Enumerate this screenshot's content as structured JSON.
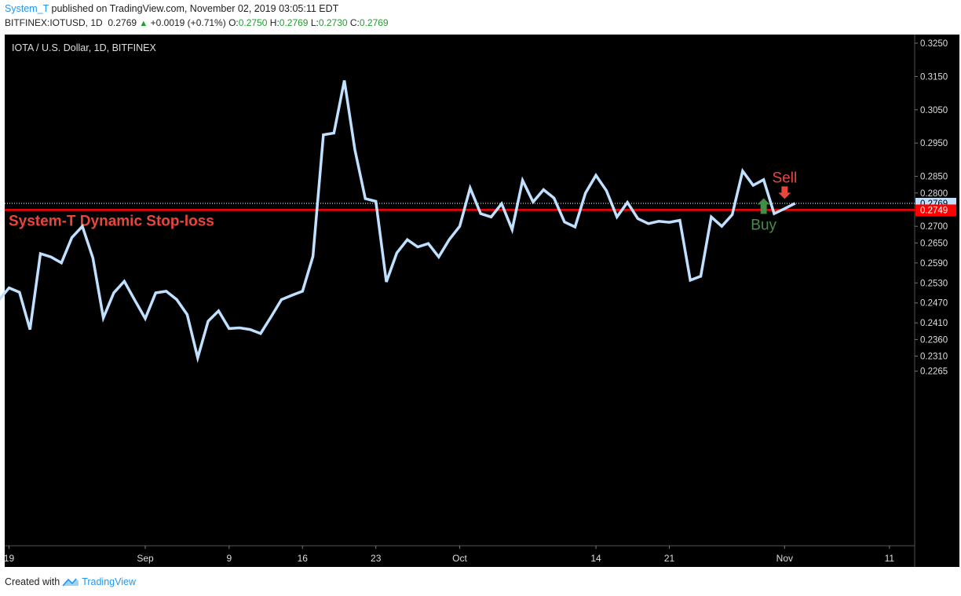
{
  "header": {
    "user": "System_T",
    "published": "published on TradingView.com, November 02, 2019 03:05:11 EDT",
    "symbol": "BITFINEX:IOTUSD, 1D",
    "last": "0.2769",
    "change": "+0.0019 (+0.71%)",
    "o_label": "O:",
    "o": "0.2750",
    "h_label": "H:",
    "h": "0.2769",
    "l_label": "L:",
    "l": "0.2730",
    "c_label": "C:",
    "c": "0.2769"
  },
  "footer": {
    "created_with": "Created with",
    "brand": "TradingView"
  },
  "colors": {
    "background": "#000000",
    "line": "#bfe0ff",
    "stoploss": "#ff0000",
    "label_red": "#e8453c",
    "buy": "#3f8f47",
    "sell": "#e8453c"
  },
  "chart_data": {
    "type": "line",
    "title": "IOTA / U.S. Dollar, 1D, BITFINEX",
    "ylim": [
      0.2222,
      0.3275
    ],
    "y_ticks": [
      "0.3250",
      "0.3150",
      "0.3050",
      "0.2950",
      "0.2850",
      "0.2800",
      "0.2700",
      "0.2650",
      "0.2590",
      "0.2530",
      "0.2470",
      "0.2410",
      "0.2360",
      "0.2310",
      "0.2265"
    ],
    "x_ticks": [
      {
        "day": -13,
        "label": "19"
      },
      {
        "day": 0,
        "label": "Sep"
      },
      {
        "day": 8,
        "label": "9"
      },
      {
        "day": 15,
        "label": "16"
      },
      {
        "day": 22,
        "label": "23"
      },
      {
        "day": 30,
        "label": "Oct"
      },
      {
        "day": 43,
        "label": "14"
      },
      {
        "day": 50,
        "label": "21"
      },
      {
        "day": 61,
        "label": "Nov"
      },
      {
        "day": 71,
        "label": "11"
      }
    ],
    "series": [
      {
        "x": [
          -14,
          -13,
          -12,
          -11,
          -10,
          -9,
          -8,
          -7,
          -6,
          -5,
          -4,
          -3,
          -2,
          -1,
          0,
          1,
          2,
          3,
          4,
          5,
          6,
          7,
          8,
          9,
          10,
          11,
          12,
          13,
          14,
          15,
          16,
          17,
          18,
          19,
          20,
          21,
          22,
          23,
          24,
          25,
          26,
          27,
          28,
          29,
          30,
          31,
          32,
          33,
          34,
          35,
          36,
          37,
          38,
          39,
          40,
          41,
          42,
          43,
          44,
          45,
          46,
          47,
          48,
          49,
          50,
          51,
          52,
          53,
          54,
          55,
          56,
          57,
          58,
          59,
          60,
          61,
          62
        ],
        "y": [
          0.2477,
          0.2515,
          0.2502,
          0.239,
          0.2618,
          0.2608,
          0.259,
          0.2666,
          0.27,
          0.2605,
          0.2425,
          0.25,
          0.2535,
          0.2478,
          0.2423,
          0.25,
          0.2505,
          0.248,
          0.2435,
          0.2305,
          0.2415,
          0.2446,
          0.2393,
          0.2395,
          0.239,
          0.2378,
          0.2428,
          0.248,
          0.2493,
          0.2505,
          0.261,
          0.2975,
          0.298,
          0.3138,
          0.293,
          0.2783,
          0.2775,
          0.2533,
          0.262,
          0.266,
          0.2638,
          0.2648,
          0.2608,
          0.266,
          0.27,
          0.2815,
          0.2738,
          0.2728,
          0.2768,
          0.269,
          0.2838,
          0.2773,
          0.281,
          0.2785,
          0.2713,
          0.2698,
          0.28,
          0.2853,
          0.2807,
          0.2728,
          0.2772,
          0.2723,
          0.2708,
          0.2715,
          0.2712,
          0.2718,
          0.2538,
          0.255,
          0.2728,
          0.27,
          0.2735,
          0.2866,
          0.2823,
          0.284,
          0.2738,
          0.2753,
          0.2769
        ]
      }
    ],
    "price_lines": [
      {
        "value": 0.2769,
        "label": "0.2769",
        "style": "dotted-white"
      },
      {
        "value": 0.2749,
        "label": "0.2749",
        "style": "solid-red",
        "caption": "System-T Dynamic Stop-loss"
      }
    ],
    "annotations": [
      {
        "type": "buy-arrow",
        "day": 59,
        "text": "Buy"
      },
      {
        "type": "sell-arrow",
        "day": 61,
        "text": "Sell"
      }
    ]
  }
}
